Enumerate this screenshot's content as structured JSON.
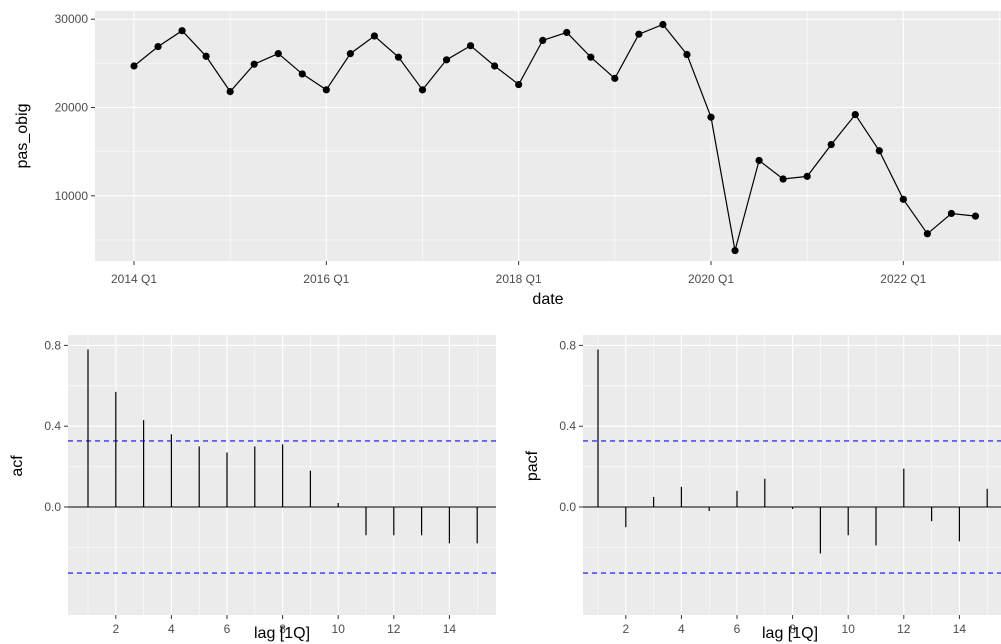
{
  "chart_data": [
    {
      "type": "line",
      "xlabel": "date",
      "ylabel": "pas_obig",
      "x_tick_labels": [
        "2014 Q1",
        "2016 Q1",
        "2018 Q1",
        "2020 Q1",
        "2022 Q1"
      ],
      "y_tick_labels": [
        "10000",
        "20000",
        "30000"
      ],
      "y_ticks": [
        10000,
        20000,
        30000
      ],
      "ylim": [
        2500,
        31000
      ],
      "grid": true,
      "x": [
        "2014 Q1",
        "2014 Q2",
        "2014 Q3",
        "2014 Q4",
        "2015 Q1",
        "2015 Q2",
        "2015 Q3",
        "2015 Q4",
        "2016 Q1",
        "2016 Q2",
        "2016 Q3",
        "2016 Q4",
        "2017 Q1",
        "2017 Q2",
        "2017 Q3",
        "2017 Q4",
        "2018 Q1",
        "2018 Q2",
        "2018 Q3",
        "2018 Q4",
        "2019 Q1",
        "2019 Q2",
        "2019 Q3",
        "2019 Q4",
        "2020 Q1",
        "2020 Q2",
        "2020 Q3",
        "2020 Q4",
        "2021 Q1",
        "2021 Q2",
        "2021 Q3",
        "2021 Q4",
        "2022 Q1",
        "2022 Q2",
        "2022 Q3",
        "2022 Q4"
      ],
      "values": [
        24700,
        26900,
        28700,
        25800,
        21800,
        24900,
        26100,
        23800,
        22000,
        26100,
        28100,
        25700,
        22000,
        25400,
        27000,
        24700,
        22600,
        27600,
        28500,
        25700,
        23300,
        28300,
        29400,
        26000,
        18900,
        3800,
        14000,
        11900,
        12200,
        15800,
        19200,
        15100,
        9600,
        5700,
        8000,
        7700
      ]
    },
    {
      "type": "bar",
      "xlabel": "lag [1Q]",
      "ylabel": "acf",
      "lags": [
        1,
        2,
        3,
        4,
        5,
        6,
        7,
        8,
        9,
        10,
        11,
        12,
        13,
        14,
        15
      ],
      "values": [
        0.78,
        0.57,
        0.43,
        0.36,
        0.3,
        0.27,
        0.3,
        0.31,
        0.18,
        0.02,
        -0.14,
        -0.14,
        -0.14,
        -0.18,
        -0.18
      ],
      "x_tick_labels": [
        "2",
        "4",
        "6",
        "8",
        "10",
        "12",
        "14"
      ],
      "y_tick_labels": [
        "0.0",
        "0.4",
        "0.8"
      ],
      "y_ticks": [
        0,
        0.4,
        0.8
      ],
      "ylim": [
        -0.34,
        0.81
      ],
      "confidence_bound": 0.327,
      "confidence_color": "#3333ff",
      "grid": true
    },
    {
      "type": "bar",
      "xlabel": "lag [1Q]",
      "ylabel": "pacf",
      "lags": [
        1,
        2,
        3,
        4,
        5,
        6,
        7,
        8,
        9,
        10,
        11,
        12,
        13,
        14,
        15
      ],
      "values": [
        0.78,
        -0.1,
        0.05,
        0.1,
        -0.02,
        0.08,
        0.14,
        -0.01,
        -0.23,
        -0.14,
        -0.19,
        0.19,
        -0.07,
        -0.17,
        0.09
      ],
      "x_tick_labels": [
        "2",
        "4",
        "6",
        "8",
        "10",
        "12",
        "14"
      ],
      "y_tick_labels": [
        "0.0",
        "0.4",
        "0.8"
      ],
      "y_ticks": [
        0,
        0.4,
        0.8
      ],
      "ylim": [
        -0.34,
        0.81
      ],
      "confidence_bound": 0.327,
      "confidence_color": "#3333ff",
      "grid": true
    }
  ]
}
